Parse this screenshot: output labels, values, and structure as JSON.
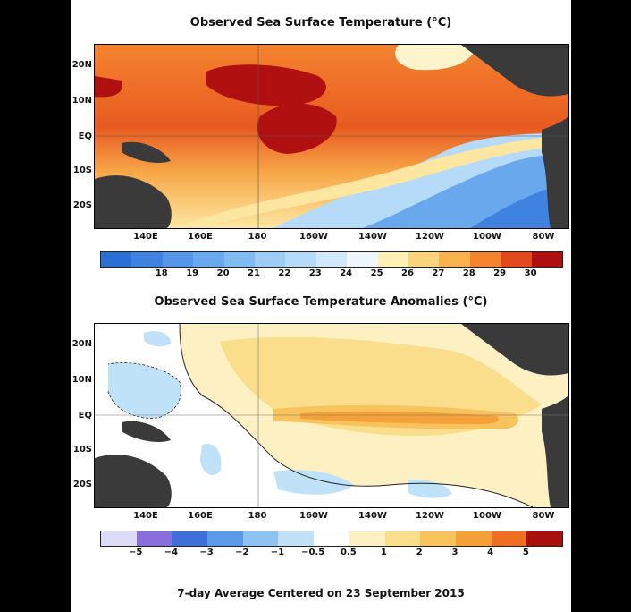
{
  "top_panel": {
    "title": "Observed Sea Surface Temperature (°C)",
    "lat_labels": [
      "20N",
      "10N",
      "EQ",
      "10S",
      "20S"
    ],
    "lon_labels": [
      "140E",
      "160E",
      "180",
      "160W",
      "140W",
      "120W",
      "100W",
      "80W"
    ],
    "colorbar_ticks": [
      "18",
      "19",
      "20",
      "21",
      "22",
      "23",
      "24",
      "25",
      "26",
      "27",
      "28",
      "29",
      "30"
    ],
    "colorbar_colors": [
      "#2a6fd6",
      "#3f82e0",
      "#5596e8",
      "#6aa8ee",
      "#82baf2",
      "#9dccf5",
      "#b6dbf8",
      "#cfe8fa",
      "#eef6fb",
      "#fff0b8",
      "#fcd47c",
      "#f9b24e",
      "#f5832e",
      "#e24a1e",
      "#b01010"
    ]
  },
  "bottom_panel": {
    "title": "Observed Sea Surface Temperature Anomalies (°C)",
    "lat_labels": [
      "20N",
      "10N",
      "EQ",
      "10S",
      "20S"
    ],
    "lon_labels": [
      "140E",
      "160E",
      "180",
      "160W",
      "140W",
      "120W",
      "100W",
      "80W"
    ],
    "colorbar_ticks": [
      "−5",
      "−4",
      "−3",
      "−2",
      "−1",
      "−0.5",
      "0.5",
      "1",
      "2",
      "3",
      "4",
      "5"
    ],
    "colorbar_colors": [
      "#dcdcf8",
      "#8a6fdc",
      "#3f6fd8",
      "#5a9ae6",
      "#8cc3f0",
      "#bfe2f8",
      "#ffffff",
      "#fdf1c4",
      "#fbde8c",
      "#f8c25c",
      "#f4a13a",
      "#ee6f24",
      "#a8100e"
    ]
  },
  "footer": "7-day Average Centered on 23 September 2015"
}
